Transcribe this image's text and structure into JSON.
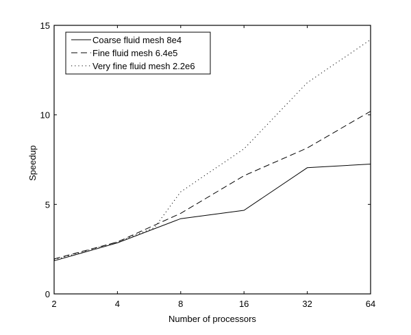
{
  "chart_data": {
    "type": "line",
    "title": "",
    "xlabel": "Number of processors",
    "ylabel": "Speedup",
    "xscale": "log2",
    "x_ticks": [
      2,
      4,
      8,
      16,
      32,
      64
    ],
    "x_tick_labels": [
      "2",
      "4",
      "8",
      "16",
      "32",
      "64"
    ],
    "y_ticks": [
      0,
      5,
      10,
      15
    ],
    "y_tick_labels": [
      "0",
      "5",
      "10",
      "15"
    ],
    "xlim": [
      2,
      64
    ],
    "ylim": [
      0,
      15
    ],
    "grid": false,
    "legend_position": "upper left",
    "series": [
      {
        "name": "Coarse fluid mesh 8e4",
        "style": "solid",
        "x": [
          2,
          4,
          8,
          16,
          32,
          64
        ],
        "values": [
          1.85,
          2.85,
          4.2,
          4.67,
          7.05,
          7.25
        ]
      },
      {
        "name": "Fine fluid mesh 6.4e5",
        "style": "dashed",
        "x": [
          2,
          4,
          8,
          16,
          32,
          64
        ],
        "values": [
          1.95,
          2.9,
          4.5,
          6.6,
          8.15,
          10.2
        ]
      },
      {
        "name": "Very fine fluid mesh 2.2e6",
        "style": "dotted",
        "x": [
          2,
          4,
          6,
          8,
          16,
          32,
          64
        ],
        "values": [
          1.9,
          2.9,
          3.7,
          5.7,
          8.1,
          11.8,
          14.2
        ]
      }
    ]
  }
}
